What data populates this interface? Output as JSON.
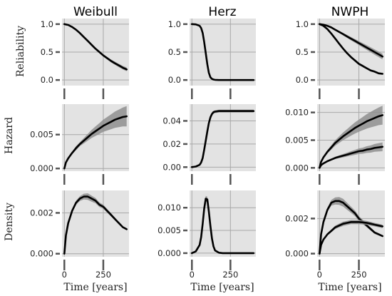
{
  "figure": {
    "column_titles": [
      "Weibull",
      "Herz",
      "NWPH"
    ],
    "row_labels": [
      "Reliability",
      "Hazard",
      "Density"
    ],
    "xlabel": "Time [years]"
  },
  "colors": {
    "panel_bg": "#e3e3e3",
    "grid": "#a8a8a8",
    "band": "#8f8f8f",
    "line": "#000000",
    "tick": "#555555"
  },
  "chart_data": [
    {
      "type": "line",
      "row": "Reliability",
      "column": "Weibull",
      "xlim": [
        -15,
        415
      ],
      "ylim": [
        -0.1,
        1.1
      ],
      "yticks": [
        0.0,
        0.5,
        1.0
      ],
      "ytick_labels": [
        "0.0",
        "0.5",
        "1.0"
      ],
      "xticks": [
        0,
        250
      ],
      "xtick_labels": [],
      "grid": true,
      "x": [
        0,
        25,
        50,
        75,
        100,
        125,
        150,
        175,
        200,
        225,
        250,
        275,
        300,
        325,
        350,
        375,
        400
      ],
      "series": [
        {
          "values": [
            1.0,
            0.985,
            0.95,
            0.9,
            0.84,
            0.77,
            0.7,
            0.63,
            0.56,
            0.5,
            0.44,
            0.39,
            0.34,
            0.3,
            0.26,
            0.22,
            0.19
          ],
          "band_half_width": [
            0,
            0.002,
            0.005,
            0.008,
            0.01,
            0.012,
            0.014,
            0.016,
            0.018,
            0.02,
            0.022,
            0.024,
            0.026,
            0.028,
            0.03,
            0.032,
            0.034
          ]
        }
      ]
    },
    {
      "type": "line",
      "row": "Reliability",
      "column": "Herz",
      "xlim": [
        -15,
        415
      ],
      "ylim": [
        -0.1,
        1.1
      ],
      "yticks": [
        0.0,
        0.5,
        1.0
      ],
      "ytick_labels": [
        "0.0",
        "0.5",
        "1.0"
      ],
      "xticks": [
        0,
        250
      ],
      "xtick_labels": [],
      "grid": true,
      "x": [
        0,
        25,
        50,
        60,
        70,
        80,
        90,
        100,
        110,
        120,
        130,
        140,
        150,
        175,
        200,
        250,
        300,
        350,
        400
      ],
      "series": [
        {
          "values": [
            1.0,
            0.995,
            0.97,
            0.93,
            0.84,
            0.68,
            0.48,
            0.28,
            0.13,
            0.05,
            0.02,
            0.008,
            0.003,
            0.0,
            0.0,
            0.0,
            0.0,
            0.0,
            0.0
          ],
          "band_half_width": [
            0,
            0.003,
            0.006,
            0.01,
            0.015,
            0.02,
            0.02,
            0.02,
            0.015,
            0.01,
            0.006,
            0.003,
            0.002,
            0,
            0,
            0,
            0,
            0,
            0
          ]
        }
      ]
    },
    {
      "type": "line",
      "row": "Reliability",
      "column": "NWPH",
      "xlim": [
        -15,
        415
      ],
      "ylim": [
        -0.1,
        1.1
      ],
      "yticks": [
        0.0,
        0.5,
        1.0
      ],
      "ytick_labels": [
        "0.0",
        "0.5",
        "1.0"
      ],
      "xticks": [
        0,
        250
      ],
      "xtick_labels": [],
      "grid": true,
      "x": [
        0,
        25,
        50,
        75,
        100,
        125,
        150,
        175,
        200,
        225,
        250,
        275,
        300,
        325,
        350,
        375,
        400
      ],
      "series": [
        {
          "values": [
            1.0,
            0.99,
            0.97,
            0.94,
            0.9,
            0.86,
            0.82,
            0.78,
            0.74,
            0.7,
            0.66,
            0.62,
            0.58,
            0.54,
            0.5,
            0.46,
            0.42
          ],
          "band_half_width": [
            0,
            0.003,
            0.006,
            0.01,
            0.014,
            0.018,
            0.022,
            0.026,
            0.03,
            0.033,
            0.036,
            0.039,
            0.042,
            0.045,
            0.047,
            0.049,
            0.05
          ]
        },
        {
          "values": [
            1.0,
            0.97,
            0.91,
            0.83,
            0.74,
            0.65,
            0.56,
            0.48,
            0.41,
            0.35,
            0.29,
            0.25,
            0.21,
            0.17,
            0.15,
            0.12,
            0.11
          ],
          "band_half_width": [
            0,
            0.004,
            0.008,
            0.012,
            0.015,
            0.018,
            0.02,
            0.021,
            0.022,
            0.022,
            0.022,
            0.021,
            0.02,
            0.019,
            0.018,
            0.017,
            0.016
          ]
        }
      ]
    },
    {
      "type": "line",
      "row": "Hazard",
      "column": "Weibull",
      "xlim": [
        -15,
        415
      ],
      "ylim": [
        -0.0004,
        0.0095
      ],
      "yticks": [
        0.0,
        0.005
      ],
      "ytick_labels": [
        "0.000",
        "0.005"
      ],
      "xticks": [
        0,
        250
      ],
      "xtick_labels": [],
      "grid": true,
      "x": [
        0,
        10,
        25,
        50,
        75,
        100,
        125,
        150,
        175,
        200,
        225,
        250,
        275,
        300,
        325,
        350,
        375,
        400
      ],
      "series": [
        {
          "values": [
            0.0,
            0.0009,
            0.0015,
            0.0023,
            0.003,
            0.0036,
            0.0041,
            0.0046,
            0.0051,
            0.0055,
            0.0059,
            0.0063,
            0.0066,
            0.0069,
            0.0072,
            0.0074,
            0.0076,
            0.0077
          ],
          "band_half_width": [
            0,
            0.0001,
            0.0002,
            0.0002,
            0.0003,
            0.0003,
            0.0004,
            0.0005,
            0.0006,
            0.0007,
            0.0008,
            0.0009,
            0.001,
            0.0011,
            0.0012,
            0.0013,
            0.0014,
            0.0015
          ]
        }
      ]
    },
    {
      "type": "line",
      "row": "Hazard",
      "column": "Herz",
      "xlim": [
        -15,
        415
      ],
      "ylim": [
        -0.0035,
        0.0545
      ],
      "yticks": [
        0.0,
        0.02,
        0.04
      ],
      "ytick_labels": [
        "0.00",
        "0.02",
        "0.04"
      ],
      "xticks": [
        0,
        250
      ],
      "xtick_labels": [],
      "grid": true,
      "x": [
        0,
        25,
        50,
        60,
        70,
        80,
        90,
        100,
        110,
        120,
        130,
        140,
        150,
        175,
        200,
        250,
        300,
        350,
        400
      ],
      "series": [
        {
          "values": [
            0.0,
            0.0005,
            0.002,
            0.004,
            0.008,
            0.015,
            0.023,
            0.031,
            0.038,
            0.043,
            0.046,
            0.0475,
            0.048,
            0.0485,
            0.0485,
            0.0485,
            0.0485,
            0.0485,
            0.0485
          ],
          "band_half_width": [
            0,
            0.0002,
            0.0006,
            0.0009,
            0.0012,
            0.0015,
            0.0017,
            0.0018,
            0.0018,
            0.0016,
            0.0014,
            0.0013,
            0.0012,
            0.0012,
            0.0012,
            0.0012,
            0.0012,
            0.0012,
            0.0012
          ]
        }
      ]
    },
    {
      "type": "line",
      "row": "Hazard",
      "column": "NWPH",
      "xlim": [
        -15,
        415
      ],
      "ylim": [
        -0.0006,
        0.0115
      ],
      "yticks": [
        0.0,
        0.005,
        0.01
      ],
      "ytick_labels": [
        "0.000",
        "0.005",
        "0.010"
      ],
      "xticks": [
        0,
        250
      ],
      "xtick_labels": [],
      "grid": true,
      "x": [
        0,
        10,
        25,
        50,
        75,
        100,
        125,
        150,
        175,
        200,
        225,
        250,
        275,
        300,
        325,
        350,
        375,
        400
      ],
      "series": [
        {
          "values": [
            0.0,
            0.0011,
            0.0019,
            0.0029,
            0.0037,
            0.0045,
            0.0051,
            0.0057,
            0.0062,
            0.0067,
            0.0072,
            0.0076,
            0.008,
            0.0084,
            0.0087,
            0.009,
            0.0093,
            0.0095
          ],
          "band_half_width": [
            0,
            0.0001,
            0.0002,
            0.0003,
            0.0004,
            0.0005,
            0.0006,
            0.0007,
            0.0008,
            0.0009,
            0.001,
            0.0011,
            0.0012,
            0.0013,
            0.0014,
            0.0015,
            0.0016,
            0.0017
          ]
        },
        {
          "values": [
            0.0,
            0.0005,
            0.0008,
            0.0012,
            0.0015,
            0.0018,
            0.002,
            0.0022,
            0.0024,
            0.0026,
            0.0028,
            0.003,
            0.0031,
            0.0033,
            0.0034,
            0.0036,
            0.0037,
            0.0038
          ],
          "band_half_width": [
            0,
            5e-05,
            0.0001,
            0.0001,
            0.00015,
            0.0002,
            0.00025,
            0.0003,
            0.00035,
            0.0004,
            0.00045,
            0.0005,
            0.00055,
            0.0006,
            0.00065,
            0.0007,
            0.00075,
            0.0008
          ]
        }
      ]
    },
    {
      "type": "line",
      "row": "Density",
      "column": "Weibull",
      "xlim": [
        -15,
        415
      ],
      "ylim": [
        -0.00015,
        0.0031
      ],
      "yticks": [
        0.0,
        0.002
      ],
      "ytick_labels": [
        "0.000",
        "0.002"
      ],
      "xticks": [
        0,
        250
      ],
      "xtick_labels": [
        "0",
        "250"
      ],
      "grid": true,
      "x": [
        0,
        10,
        25,
        50,
        75,
        100,
        125,
        150,
        175,
        200,
        225,
        250,
        275,
        300,
        325,
        350,
        375,
        400
      ],
      "series": [
        {
          "values": [
            0.0,
            0.0009,
            0.0015,
            0.0021,
            0.0025,
            0.0027,
            0.0028,
            0.0028,
            0.0027,
            0.0026,
            0.0024,
            0.0023,
            0.0021,
            0.0019,
            0.0017,
            0.0015,
            0.0013,
            0.0012
          ],
          "band_half_width": [
            0,
            3e-05,
            5e-05,
            8e-05,
            0.0001,
            0.00012,
            0.00014,
            0.00016,
            0.00015,
            0.00013,
            0.00011,
            0.0001,
            9e-05,
            8e-05,
            7e-05,
            6e-05,
            5e-05,
            5e-05
          ]
        }
      ]
    },
    {
      "type": "line",
      "row": "Density",
      "column": "Herz",
      "xlim": [
        -15,
        415
      ],
      "ylim": [
        -0.0008,
        0.0138
      ],
      "yticks": [
        0.0,
        0.005,
        0.01
      ],
      "ytick_labels": [
        "0.000",
        "0.005",
        "0.010"
      ],
      "xticks": [
        0,
        250
      ],
      "xtick_labels": [
        "0",
        "250"
      ],
      "grid": true,
      "x": [
        0,
        25,
        50,
        60,
        70,
        80,
        90,
        100,
        110,
        120,
        130,
        140,
        150,
        175,
        200,
        250,
        300,
        350,
        400
      ],
      "series": [
        {
          "values": [
            0.0,
            0.0004,
            0.0018,
            0.0035,
            0.0065,
            0.0098,
            0.012,
            0.0118,
            0.0092,
            0.006,
            0.0032,
            0.0015,
            0.0006,
            0.0001,
            0.0,
            0.0,
            0.0,
            0.0,
            0.0
          ],
          "band_half_width": [
            0,
            0.0001,
            0.0002,
            0.0003,
            0.0004,
            0.0005,
            0.0006,
            0.0006,
            0.0005,
            0.0004,
            0.0003,
            0.0002,
            0.0001,
            0,
            0,
            0,
            0,
            0,
            0
          ]
        }
      ]
    },
    {
      "type": "line",
      "row": "Density",
      "column": "NWPH",
      "xlim": [
        -15,
        415
      ],
      "ylim": [
        -0.00018,
        0.0036
      ],
      "yticks": [
        0.0,
        0.002
      ],
      "ytick_labels": [
        "0.000",
        "0.002"
      ],
      "xticks": [
        0,
        250
      ],
      "xtick_labels": [
        "0",
        "250"
      ],
      "grid": true,
      "x": [
        0,
        10,
        25,
        50,
        75,
        100,
        125,
        150,
        175,
        200,
        225,
        250,
        275,
        300,
        325,
        350,
        375,
        400
      ],
      "series": [
        {
          "values": [
            0.0,
            0.0011,
            0.0018,
            0.0025,
            0.0029,
            0.003,
            0.003,
            0.0029,
            0.0027,
            0.0025,
            0.0023,
            0.002,
            0.0018,
            0.0016,
            0.0014,
            0.0012,
            0.0011,
            0.001
          ],
          "band_half_width": [
            0,
            5e-05,
            8e-05,
            0.00012,
            0.00016,
            0.0002,
            0.00022,
            0.00022,
            0.0002,
            0.00018,
            0.00016,
            0.00014,
            0.00012,
            0.0001,
            9e-05,
            8e-05,
            7e-05,
            6e-05
          ]
        },
        {
          "values": [
            0.0,
            0.0005,
            0.0008,
            0.0011,
            0.0013,
            0.0015,
            0.0016,
            0.0017,
            0.00175,
            0.0018,
            0.0018,
            0.0018,
            0.00178,
            0.00175,
            0.0017,
            0.00165,
            0.0016,
            0.00155
          ],
          "band_half_width": [
            0,
            3e-05,
            5e-05,
            6e-05,
            8e-05,
            0.0001,
            0.00011,
            0.00012,
            0.00012,
            0.00012,
            0.00012,
            0.00012,
            0.00012,
            0.00011,
            0.00011,
            0.0001,
            0.0001,
            0.0001
          ]
        }
      ]
    }
  ]
}
